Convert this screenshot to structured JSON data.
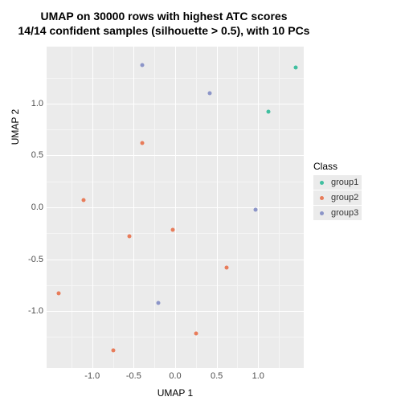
{
  "chart": {
    "type": "scatter",
    "title_line1": "UMAP on 30000 rows with highest ATC scores",
    "title_line2": "14/14 confident samples (silhouette > 0.5), with 10 PCs",
    "title_fontsize": 14,
    "xlabel": "UMAP 1",
    "ylabel": "UMAP 2",
    "label_fontsize": 12,
    "background_color": "#ffffff",
    "panel_color": "#ebebeb",
    "grid_color": "#ffffff",
    "grid_minor_color": "#f5f5f5",
    "tick_color": "#4d4d4d",
    "tick_fontsize": 11,
    "xlim": [
      -1.55,
      1.55
    ],
    "ylim": [
      -1.55,
      1.55
    ],
    "xticks": [
      -1.0,
      -0.5,
      0.0,
      0.5,
      1.0
    ],
    "xtick_labels": [
      "-1.0",
      "-0.5",
      "0.0",
      "0.5",
      "1.0"
    ],
    "yticks": [
      -1.0,
      -0.5,
      0.0,
      0.5,
      1.0
    ],
    "ytick_labels": [
      "-1.0",
      "-0.5",
      "0.0",
      "0.5",
      "1.0"
    ],
    "xticks_minor": [
      -1.25,
      -0.75,
      -0.25,
      0.25,
      0.75,
      1.25
    ],
    "yticks_minor": [
      -1.25,
      -0.75,
      -0.25,
      0.25,
      0.75,
      1.25
    ],
    "point_size": 5,
    "legend": {
      "title": "Class",
      "items": [
        {
          "label": "group1",
          "color": "#40bfa0"
        },
        {
          "label": "group2",
          "color": "#e87c5a"
        },
        {
          "label": "group3",
          "color": "#8c95c8"
        }
      ]
    },
    "colors": {
      "group1": "#40bfa0",
      "group2": "#e87c5a",
      "group3": "#8c95c8"
    },
    "points": [
      {
        "x": 1.45,
        "y": 1.35,
        "class": "group1"
      },
      {
        "x": 1.12,
        "y": 0.92,
        "class": "group1"
      },
      {
        "x": -1.1,
        "y": 0.07,
        "class": "group2"
      },
      {
        "x": -0.4,
        "y": 0.62,
        "class": "group2"
      },
      {
        "x": -0.55,
        "y": -0.28,
        "class": "group2"
      },
      {
        "x": -0.03,
        "y": -0.22,
        "class": "group2"
      },
      {
        "x": 0.62,
        "y": -0.58,
        "class": "group2"
      },
      {
        "x": -1.4,
        "y": -0.83,
        "class": "group2"
      },
      {
        "x": 0.25,
        "y": -1.22,
        "class": "group2"
      },
      {
        "x": -0.75,
        "y": -1.38,
        "class": "group2"
      },
      {
        "x": -0.4,
        "y": 1.37,
        "class": "group3"
      },
      {
        "x": 0.42,
        "y": 1.1,
        "class": "group3"
      },
      {
        "x": 0.97,
        "y": -0.02,
        "class": "group3"
      },
      {
        "x": -0.2,
        "y": -0.92,
        "class": "group3"
      }
    ]
  }
}
